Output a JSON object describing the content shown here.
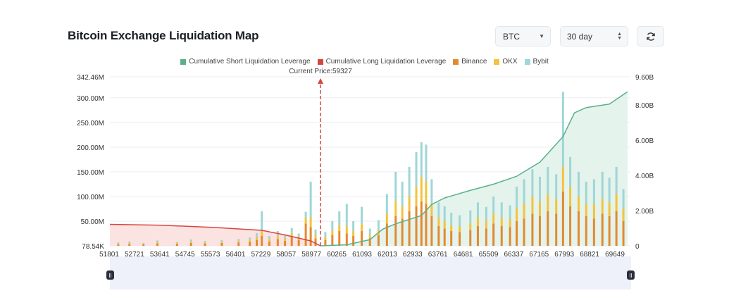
{
  "page": {
    "title": "Bitcoin Exchange Liquidation Map"
  },
  "controls": {
    "coin": {
      "value": "BTC"
    },
    "range": {
      "value": "30 day"
    },
    "refresh": {
      "icon": "refresh-icon"
    }
  },
  "colors": {
    "short": "#5bb08c",
    "long": "#d9453d",
    "binance": "#e28a2f",
    "okx": "#f2c33c",
    "bybit": "#9fd6d6",
    "shortFill": "#e4f3ec",
    "longFill": "#fbe3e2"
  },
  "chart_data": {
    "type": "bar",
    "title": "Bitcoin Exchange Liquidation Map",
    "legend": [
      "Cumulative Short Liquidation Leverage",
      "Cumulative Long Liquidation Leverage",
      "Binance",
      "OKX",
      "Bybit"
    ],
    "legend_position": "top-center",
    "annotation": "Current Price:59327",
    "current_price": 59327,
    "x_ticks": [
      "51801",
      "52721",
      "53641",
      "54745",
      "55573",
      "56401",
      "57229",
      "58057",
      "58977",
      "60265",
      "61093",
      "62013",
      "62933",
      "63761",
      "64681",
      "65509",
      "66337",
      "67165",
      "67993",
      "68821",
      "69649"
    ],
    "x_range": [
      51801,
      70400
    ],
    "y_left": {
      "ticks": [
        "342.46M",
        "300.00M",
        "250.00M",
        "200.00M",
        "150.00M",
        "100.00M",
        "50.00M",
        "78.54K"
      ],
      "range": [
        0.07854,
        342.46
      ],
      "unit": "M"
    },
    "y_right": {
      "ticks": [
        "9.60B",
        "8.00B",
        "6.00B",
        "4.00B",
        "2.00B",
        "0"
      ],
      "range": [
        0,
        9.6
      ],
      "unit": "B"
    },
    "grid": true,
    "cumulative_long": {
      "name": "Cumulative Long Liquidation Leverage",
      "x": [
        51801,
        53641,
        55573,
        57229,
        58057,
        58977,
        59327
      ],
      "y": [
        1.22,
        1.17,
        1.04,
        0.88,
        0.62,
        0.28,
        0.0
      ]
    },
    "cumulative_short": {
      "name": "Cumulative Short Liquidation Leverage",
      "x": [
        59327,
        60265,
        61093,
        61550,
        62013,
        62933,
        63300,
        63761,
        64681,
        65509,
        66337,
        67165,
        67993,
        68400,
        68821,
        69649,
        70300
      ],
      "y": [
        0.0,
        0.06,
        0.35,
        0.95,
        1.25,
        1.72,
        2.35,
        2.72,
        3.15,
        3.5,
        3.95,
        4.75,
        6.2,
        7.55,
        7.85,
        8.05,
        8.75
      ]
    },
    "bars": [
      {
        "x": 52100,
        "binance": 3,
        "okx": 2,
        "bybit": 2
      },
      {
        "x": 52500,
        "binance": 4,
        "okx": 2,
        "bybit": 3
      },
      {
        "x": 53000,
        "binance": 3,
        "okx": 1,
        "bybit": 2
      },
      {
        "x": 53500,
        "binance": 5,
        "okx": 3,
        "bybit": 3
      },
      {
        "x": 54200,
        "binance": 4,
        "okx": 2,
        "bybit": 2
      },
      {
        "x": 54700,
        "binance": 6,
        "okx": 3,
        "bybit": 4
      },
      {
        "x": 55200,
        "binance": 5,
        "okx": 2,
        "bybit": 3
      },
      {
        "x": 55800,
        "binance": 6,
        "okx": 3,
        "bybit": 3
      },
      {
        "x": 56400,
        "binance": 7,
        "okx": 3,
        "bybit": 4
      },
      {
        "x": 56800,
        "binance": 8,
        "okx": 4,
        "bybit": 5
      },
      {
        "x": 57050,
        "binance": 12,
        "okx": 6,
        "bybit": 8
      },
      {
        "x": 57229,
        "binance": 20,
        "okx": 10,
        "bybit": 40
      },
      {
        "x": 57500,
        "binance": 9,
        "okx": 5,
        "bybit": 6
      },
      {
        "x": 57800,
        "binance": 14,
        "okx": 7,
        "bybit": 9
      },
      {
        "x": 58057,
        "binance": 10,
        "okx": 5,
        "bybit": 8
      },
      {
        "x": 58300,
        "binance": 18,
        "okx": 8,
        "bybit": 10
      },
      {
        "x": 58550,
        "binance": 12,
        "okx": 6,
        "bybit": 7
      },
      {
        "x": 58800,
        "binance": 45,
        "okx": 12,
        "bybit": 12
      },
      {
        "x": 58977,
        "binance": 38,
        "okx": 20,
        "bybit": 72
      },
      {
        "x": 59150,
        "binance": 15,
        "okx": 8,
        "bybit": 10
      },
      {
        "x": 59500,
        "binance": 12,
        "okx": 6,
        "bybit": 10
      },
      {
        "x": 59750,
        "binance": 22,
        "okx": 10,
        "bybit": 18
      },
      {
        "x": 60000,
        "binance": 30,
        "okx": 12,
        "bybit": 28
      },
      {
        "x": 60265,
        "binance": 25,
        "okx": 15,
        "bybit": 45
      },
      {
        "x": 60500,
        "binance": 20,
        "okx": 10,
        "bybit": 20
      },
      {
        "x": 60800,
        "binance": 30,
        "okx": 14,
        "bybit": 35
      },
      {
        "x": 61093,
        "binance": 15,
        "okx": 8,
        "bybit": 12
      },
      {
        "x": 61400,
        "binance": 22,
        "okx": 10,
        "bybit": 20
      },
      {
        "x": 61700,
        "binance": 45,
        "okx": 20,
        "bybit": 40
      },
      {
        "x": 62013,
        "binance": 60,
        "okx": 30,
        "bybit": 60
      },
      {
        "x": 62250,
        "binance": 55,
        "okx": 25,
        "bybit": 50
      },
      {
        "x": 62500,
        "binance": 70,
        "okx": 30,
        "bybit": 60
      },
      {
        "x": 62750,
        "binance": 80,
        "okx": 40,
        "bybit": 70
      },
      {
        "x": 62933,
        "binance": 90,
        "okx": 50,
        "bybit": 70
      },
      {
        "x": 63100,
        "binance": 85,
        "okx": 45,
        "bybit": 75
      },
      {
        "x": 63300,
        "binance": 60,
        "okx": 25,
        "bybit": 50
      },
      {
        "x": 63550,
        "binance": 40,
        "okx": 18,
        "bybit": 30
      },
      {
        "x": 63761,
        "binance": 35,
        "okx": 15,
        "bybit": 30
      },
      {
        "x": 64000,
        "binance": 30,
        "okx": 12,
        "bybit": 25
      },
      {
        "x": 64300,
        "binance": 28,
        "okx": 12,
        "bybit": 22
      },
      {
        "x": 64681,
        "binance": 32,
        "okx": 14,
        "bybit": 26
      },
      {
        "x": 64950,
        "binance": 40,
        "okx": 18,
        "bybit": 30
      },
      {
        "x": 65250,
        "binance": 35,
        "okx": 16,
        "bybit": 28
      },
      {
        "x": 65509,
        "binance": 45,
        "okx": 20,
        "bybit": 35
      },
      {
        "x": 65800,
        "binance": 40,
        "okx": 18,
        "bybit": 30
      },
      {
        "x": 66100,
        "binance": 38,
        "okx": 16,
        "bybit": 28
      },
      {
        "x": 66337,
        "binance": 50,
        "okx": 25,
        "bybit": 45
      },
      {
        "x": 66600,
        "binance": 55,
        "okx": 30,
        "bybit": 50
      },
      {
        "x": 66900,
        "binance": 65,
        "okx": 35,
        "bybit": 55
      },
      {
        "x": 67165,
        "binance": 60,
        "okx": 30,
        "bybit": 50
      },
      {
        "x": 67450,
        "binance": 70,
        "okx": 35,
        "bybit": 55
      },
      {
        "x": 67750,
        "binance": 65,
        "okx": 30,
        "bybit": 50
      },
      {
        "x": 67993,
        "binance": 110,
        "okx": 50,
        "bybit": 152
      },
      {
        "x": 68250,
        "binance": 80,
        "okx": 40,
        "bybit": 60
      },
      {
        "x": 68550,
        "binance": 70,
        "okx": 30,
        "bybit": 50
      },
      {
        "x": 68821,
        "binance": 60,
        "okx": 25,
        "bybit": 45
      },
      {
        "x": 69100,
        "binance": 55,
        "okx": 30,
        "bybit": 50
      },
      {
        "x": 69400,
        "binance": 65,
        "okx": 30,
        "bybit": 55
      },
      {
        "x": 69649,
        "binance": 60,
        "okx": 28,
        "bybit": 50
      },
      {
        "x": 69900,
        "binance": 70,
        "okx": 35,
        "bybit": 55
      },
      {
        "x": 70150,
        "binance": 50,
        "okx": 25,
        "bybit": 40
      }
    ]
  }
}
